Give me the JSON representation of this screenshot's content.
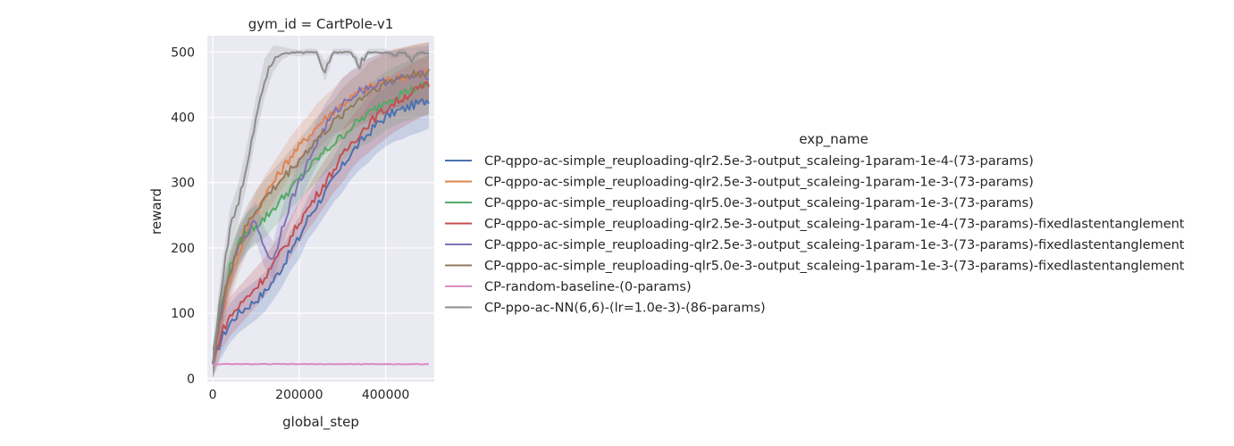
{
  "chart_data": {
    "type": "line",
    "title": "gym_id = CartPole-v1",
    "xlabel": "global_step",
    "ylabel": "reward",
    "xlim": [
      -12500,
      512500
    ],
    "ylim": [
      -5,
      525
    ],
    "xticks": [
      0,
      200000,
      400000
    ],
    "yticks": [
      0,
      100,
      200,
      300,
      400,
      500
    ],
    "grid": true,
    "shaded_bands": true,
    "legend_title": "exp_name",
    "legend_position": "right",
    "series": [
      {
        "name": "CP-qppo-ac-simple_reuploading-qlr2.5e-3-output_scaleing-1param-1e-4-(73-params)",
        "color": "#4c72b0",
        "x": [
          0,
          20000,
          40000,
          60000,
          80000,
          100000,
          120000,
          140000,
          160000,
          180000,
          200000,
          220000,
          240000,
          260000,
          280000,
          300000,
          320000,
          340000,
          360000,
          380000,
          400000,
          420000,
          440000,
          460000,
          480000,
          500000
        ],
        "y": [
          22,
          60,
          85,
          100,
          110,
          120,
          132,
          150,
          170,
          195,
          215,
          245,
          265,
          285,
          305,
          325,
          345,
          360,
          375,
          390,
          400,
          408,
          412,
          418,
          422,
          428
        ],
        "band": [
          25,
          28,
          30,
          30,
          30,
          30,
          30,
          30,
          30,
          30,
          32,
          32,
          35,
          35,
          35,
          40,
          40,
          40,
          45,
          45,
          45,
          45,
          45,
          45,
          45,
          45
        ]
      },
      {
        "name": "CP-qppo-ac-simple_reuploading-qlr2.5e-3-output_scaleing-1param-1e-3-(73-params)",
        "color": "#dd8452",
        "x": [
          0,
          20000,
          40000,
          60000,
          80000,
          100000,
          120000,
          140000,
          160000,
          180000,
          200000,
          220000,
          240000,
          260000,
          280000,
          300000,
          320000,
          340000,
          360000,
          380000,
          400000,
          420000,
          440000,
          460000,
          480000,
          500000
        ],
        "y": [
          22,
          95,
          150,
          190,
          225,
          255,
          280,
          300,
          320,
          340,
          355,
          370,
          385,
          398,
          410,
          420,
          430,
          438,
          445,
          450,
          455,
          460,
          462,
          465,
          468,
          470
        ],
        "band": [
          25,
          28,
          30,
          30,
          30,
          30,
          30,
          30,
          30,
          30,
          32,
          32,
          35,
          35,
          35,
          40,
          40,
          40,
          45,
          45,
          45,
          45,
          45,
          45,
          45,
          45
        ]
      },
      {
        "name": "CP-qppo-ac-simple_reuploading-qlr5.0e-3-output_scaleing-1param-1e-3-(73-params)",
        "color": "#55a868",
        "x": [
          0,
          20000,
          40000,
          60000,
          80000,
          100000,
          120000,
          140000,
          160000,
          180000,
          200000,
          220000,
          240000,
          260000,
          280000,
          300000,
          320000,
          340000,
          360000,
          380000,
          400000,
          420000,
          440000,
          460000,
          480000,
          500000
        ],
        "y": [
          22,
          110,
          170,
          205,
          225,
          235,
          245,
          260,
          275,
          290,
          305,
          320,
          335,
          348,
          360,
          372,
          385,
          395,
          405,
          415,
          425,
          432,
          438,
          442,
          446,
          450
        ],
        "band": [
          25,
          28,
          30,
          30,
          30,
          30,
          30,
          30,
          30,
          30,
          32,
          32,
          35,
          35,
          35,
          40,
          40,
          40,
          45,
          45,
          45,
          45,
          45,
          45,
          45,
          45
        ]
      },
      {
        "name": "CP-qppo-ac-simple_reuploading-qlr2.5e-3-output_scaleing-1param-1e-4-(73-params)-fixedlastentanglement",
        "color": "#c44e52",
        "x": [
          0,
          20000,
          40000,
          60000,
          80000,
          100000,
          120000,
          140000,
          160000,
          180000,
          200000,
          220000,
          240000,
          260000,
          280000,
          300000,
          320000,
          340000,
          360000,
          380000,
          400000,
          420000,
          440000,
          460000,
          480000,
          500000
        ],
        "y": [
          22,
          70,
          95,
          110,
          125,
          140,
          155,
          175,
          195,
          215,
          240,
          260,
          280,
          300,
          320,
          340,
          360,
          375,
          390,
          402,
          412,
          422,
          430,
          438,
          444,
          450
        ],
        "band": [
          25,
          28,
          30,
          30,
          30,
          30,
          30,
          30,
          30,
          30,
          32,
          32,
          35,
          35,
          35,
          40,
          40,
          40,
          45,
          45,
          45,
          45,
          45,
          45,
          45,
          45
        ]
      },
      {
        "name": "CP-qppo-ac-simple_reuploading-qlr2.5e-3-output_scaleing-1param-1e-3-(73-params)-fixedlastentanglement",
        "color": "#8172b3",
        "x": [
          0,
          20000,
          40000,
          60000,
          80000,
          100000,
          120000,
          140000,
          160000,
          180000,
          200000,
          220000,
          240000,
          260000,
          280000,
          300000,
          320000,
          340000,
          360000,
          380000,
          400000,
          420000,
          440000,
          460000,
          480000,
          500000
        ],
        "y": [
          22,
          100,
          160,
          200,
          225,
          240,
          200,
          180,
          230,
          270,
          300,
          330,
          360,
          385,
          405,
          420,
          432,
          440,
          446,
          450,
          455,
          458,
          460,
          462,
          464,
          465
        ],
        "band": [
          25,
          28,
          30,
          30,
          30,
          30,
          30,
          30,
          30,
          30,
          32,
          32,
          35,
          35,
          35,
          40,
          40,
          40,
          45,
          45,
          45,
          45,
          45,
          45,
          45,
          45
        ]
      },
      {
        "name": "CP-qppo-ac-simple_reuploading-qlr5.0e-3-output_scaleing-1param-1e-3-(73-params)-fixedlastentanglement",
        "color": "#937860",
        "x": [
          0,
          20000,
          40000,
          60000,
          80000,
          100000,
          120000,
          140000,
          160000,
          180000,
          200000,
          220000,
          240000,
          260000,
          280000,
          300000,
          320000,
          340000,
          360000,
          380000,
          400000,
          420000,
          440000,
          460000,
          480000,
          500000
        ],
        "y": [
          22,
          105,
          165,
          205,
          235,
          258,
          275,
          290,
          305,
          320,
          335,
          350,
          365,
          378,
          392,
          405,
          418,
          428,
          438,
          446,
          452,
          458,
          462,
          465,
          468,
          470
        ],
        "band": [
          25,
          28,
          30,
          30,
          30,
          30,
          30,
          30,
          30,
          30,
          32,
          32,
          35,
          35,
          35,
          40,
          40,
          40,
          45,
          45,
          45,
          45,
          45,
          45,
          45,
          45
        ]
      },
      {
        "name": "CP-random-baseline-(0-params)",
        "color": "#da8bc3",
        "x": [
          0,
          100000,
          200000,
          300000,
          400000,
          500000
        ],
        "y": [
          22,
          22,
          22,
          22,
          22,
          22
        ],
        "band": [
          1,
          1,
          1,
          1,
          1,
          1
        ]
      },
      {
        "name": "CP-ppo-ac-NN(6,6)-(lr=1.0e-3)-(86-params)",
        "color": "#8c8c8c",
        "x": [
          0,
          20000,
          40000,
          60000,
          80000,
          100000,
          120000,
          140000,
          160000,
          180000,
          200000,
          220000,
          240000,
          260000,
          280000,
          300000,
          320000,
          340000,
          360000,
          380000,
          400000,
          420000,
          440000,
          460000,
          480000,
          500000
        ],
        "y": [
          22,
          140,
          230,
          270,
          330,
          400,
          460,
          490,
          498,
          500,
          498,
          500,
          500,
          470,
          500,
          500,
          500,
          480,
          500,
          500,
          500,
          495,
          500,
          490,
          500,
          498
        ],
        "band": [
          25,
          28,
          30,
          30,
          30,
          30,
          30,
          20,
          10,
          5,
          5,
          5,
          5,
          15,
          5,
          5,
          5,
          10,
          5,
          5,
          5,
          5,
          5,
          5,
          5,
          5
        ]
      }
    ]
  }
}
